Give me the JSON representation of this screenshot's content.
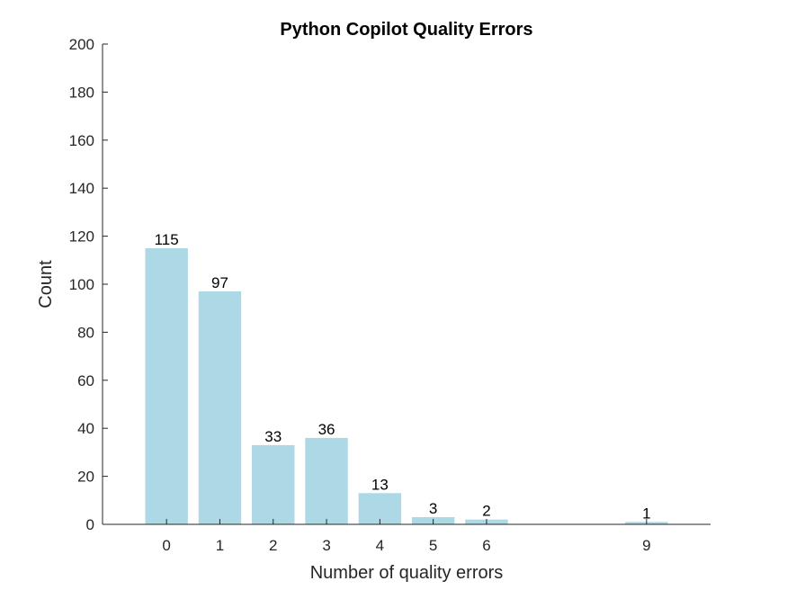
{
  "colors": {
    "bar": "#add8e6",
    "axis": "#262626",
    "background": "#ffffff"
  },
  "chart_data": {
    "type": "bar",
    "title": "Python Copilot Quality Errors",
    "xlabel": "Number of quality errors",
    "ylabel": "Count",
    "categories": [
      "0",
      "1",
      "2",
      "3",
      "4",
      "5",
      "6",
      "9"
    ],
    "x": [
      0,
      1,
      2,
      3,
      4,
      5,
      6,
      9
    ],
    "values": [
      115,
      97,
      33,
      36,
      13,
      3,
      2,
      1
    ],
    "data_labels": [
      "115",
      "97",
      "33",
      "36",
      "13",
      "3",
      "2",
      "1"
    ],
    "xlim": [
      -1.2,
      10.2
    ],
    "ylim": [
      0,
      200
    ],
    "yticks": [
      0,
      20,
      40,
      60,
      80,
      100,
      120,
      140,
      160,
      180,
      200
    ],
    "grid": false,
    "box": false
  }
}
